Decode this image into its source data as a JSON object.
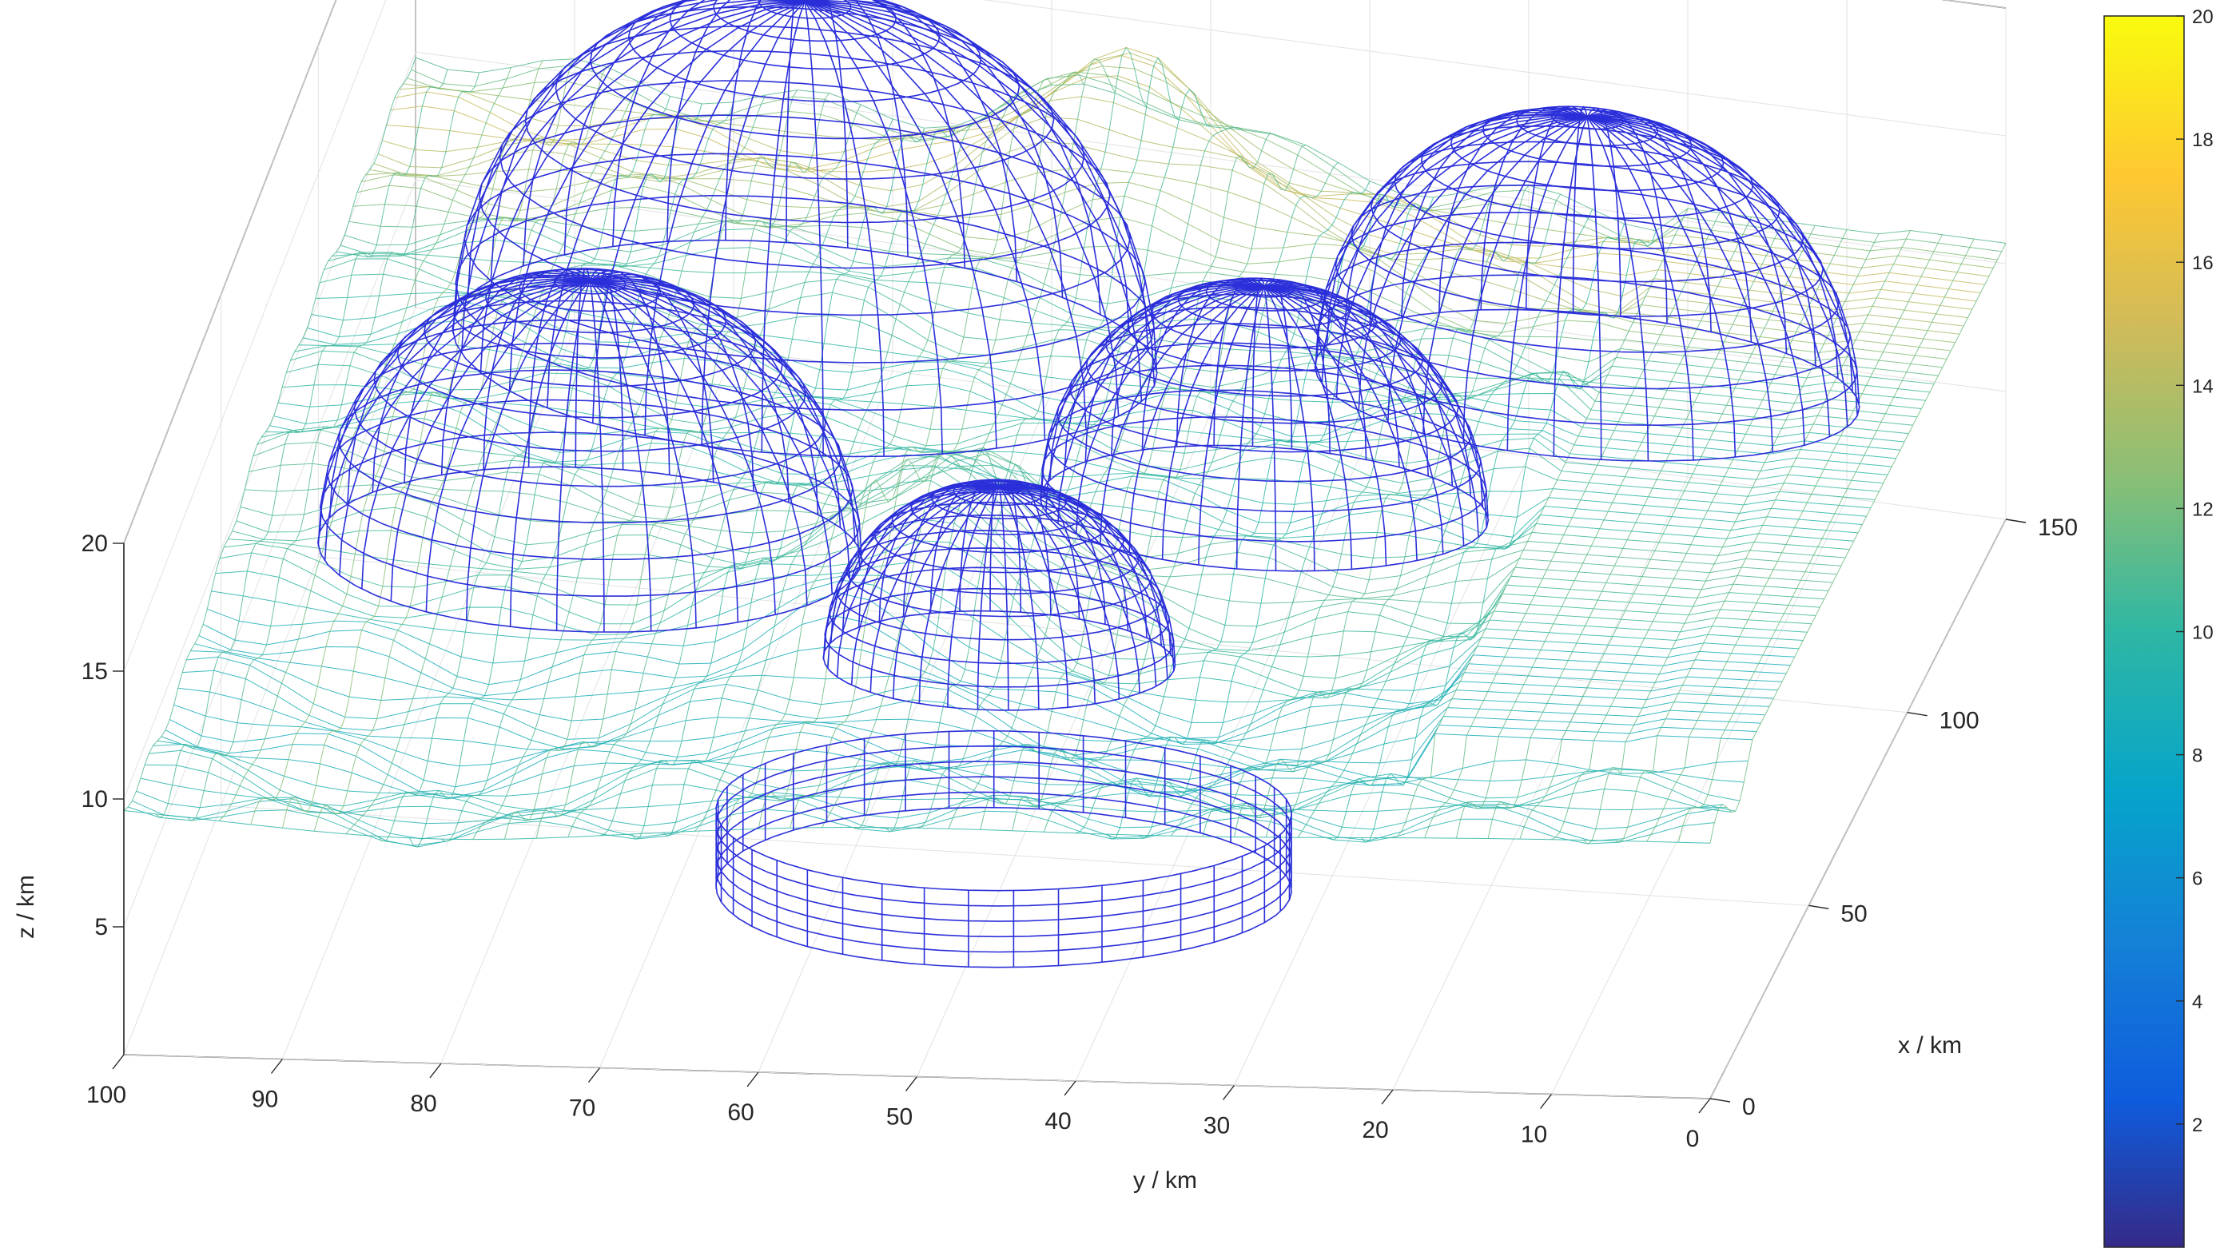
{
  "chart_data": {
    "type": "surface",
    "title": "",
    "xlabel": "x / km",
    "ylabel": "y / km",
    "zlabel": "z / km",
    "xlim": [
      0,
      150
    ],
    "ylim": [
      0,
      100
    ],
    "zlim": [
      0,
      20
    ],
    "x_ticks": [
      "0",
      "50",
      "100",
      "150"
    ],
    "y_ticks": [
      "100",
      "90",
      "80",
      "70",
      "60",
      "50",
      "40",
      "30",
      "20",
      "10",
      "0"
    ],
    "z_ticks": [
      "5",
      "10",
      "15",
      "20"
    ],
    "colorbar": {
      "limits": [
        0,
        20
      ],
      "ticks": [
        "20",
        "18",
        "16",
        "14",
        "12",
        "10",
        "8",
        "6",
        "4",
        "2"
      ],
      "colormap": "parula"
    },
    "grid": true,
    "series": [
      {
        "type": "terrain_mesh",
        "description_values": {
          "baseline_z": 10,
          "peak_z": 19
        }
      },
      {
        "type": "hemisphere",
        "center_x": 105,
        "center_y": 70,
        "radius": 22
      },
      {
        "type": "hemisphere",
        "center_x": 60,
        "center_y": 78,
        "radius": 17
      },
      {
        "type": "hemisphere",
        "center_x": 42,
        "center_y": 50,
        "radius": 11
      },
      {
        "type": "hemisphere",
        "center_x": 80,
        "center_y": 38,
        "radius": 14
      },
      {
        "type": "hemisphere",
        "center_x": 115,
        "center_y": 22,
        "radius": 17
      },
      {
        "type": "cylinder",
        "center_x": 20,
        "center_y": 47,
        "radius": 18,
        "z_from": 4,
        "z_to": 7
      }
    ]
  }
}
